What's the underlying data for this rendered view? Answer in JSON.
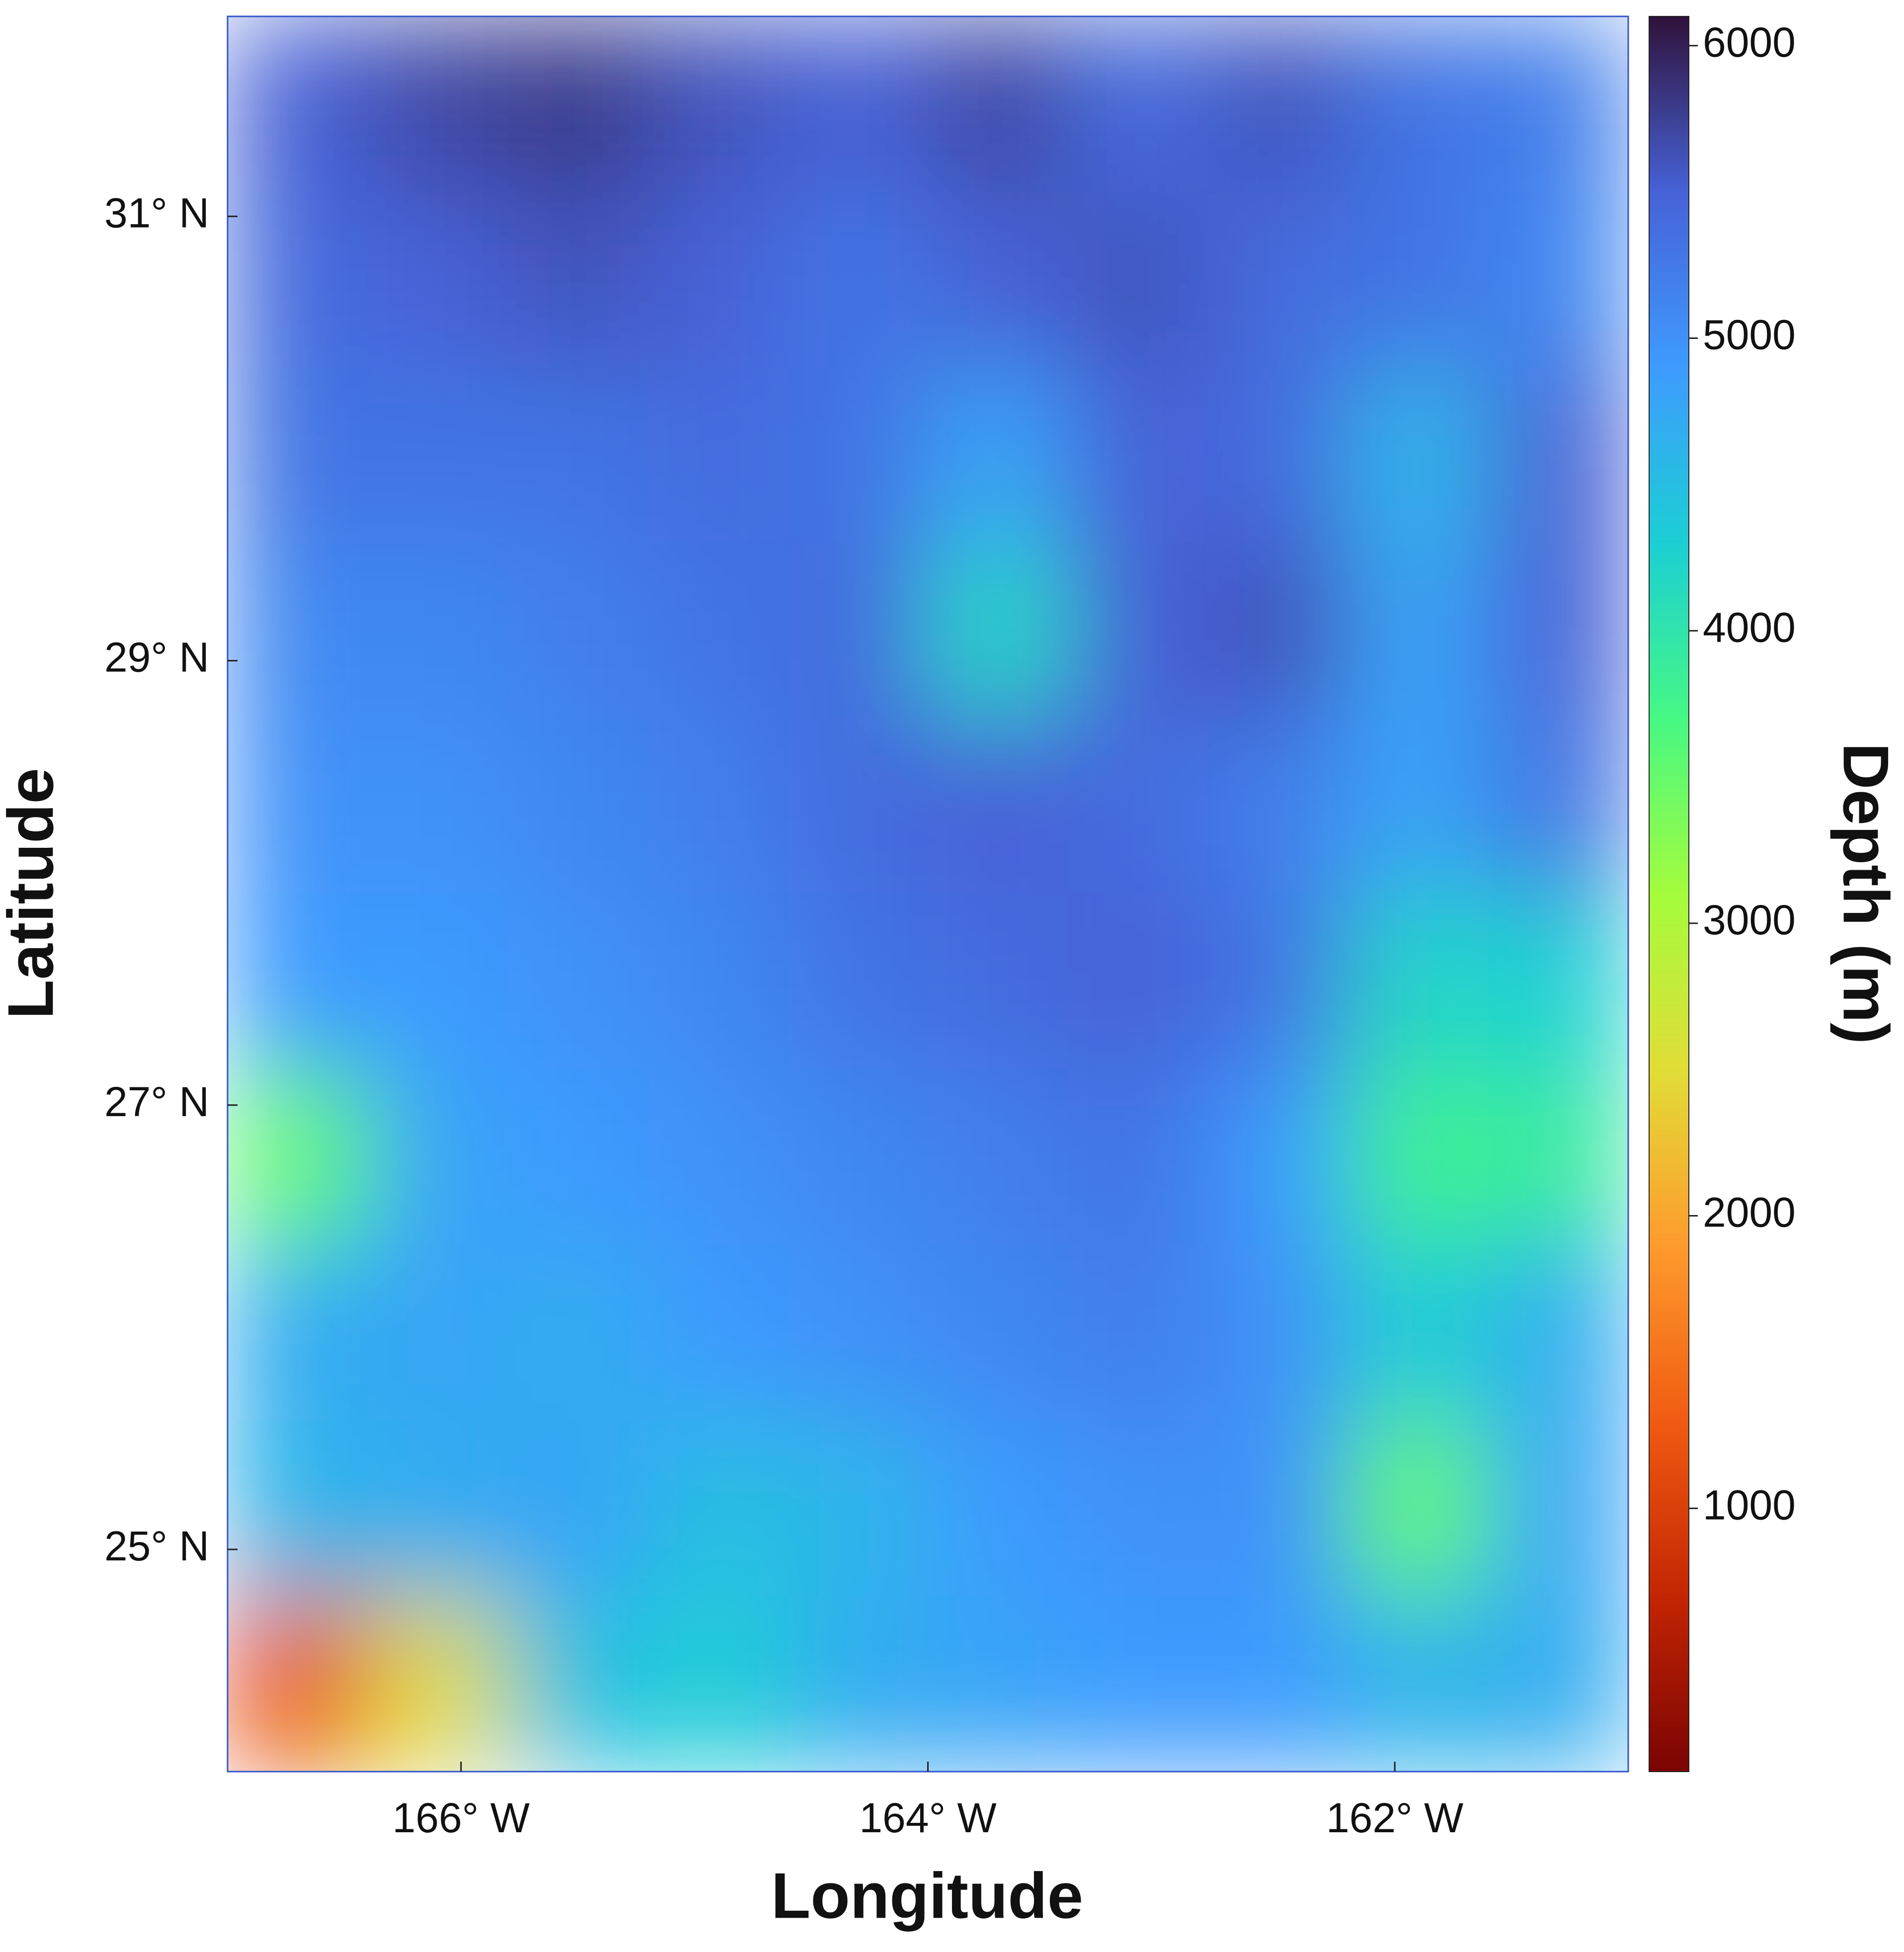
{
  "chart_data": {
    "type": "heatmap",
    "x_label": "Longitude",
    "y_label": "Latitude",
    "colorbar_label": "Depth (m)",
    "xlim": [
      -167,
      -161
    ],
    "ylim": [
      24,
      31.9
    ],
    "xticks": [
      {
        "value": -166,
        "label": "166° W"
      },
      {
        "value": -164,
        "label": "164° W"
      },
      {
        "value": -162,
        "label": "162° W"
      }
    ],
    "yticks": [
      {
        "value": 25,
        "label": "25° N"
      },
      {
        "value": 27,
        "label": "27° N"
      },
      {
        "value": 29,
        "label": "29° N"
      },
      {
        "value": 31,
        "label": "31° N"
      }
    ],
    "clim": [
      100,
      6100
    ],
    "cticks": [
      1000,
      2000,
      3000,
      4000,
      5000,
      6000
    ],
    "colorscale": [
      "#7a0403",
      "#c42503",
      "#f05b12",
      "#fe9b2d",
      "#e1dd37",
      "#a4fc3c",
      "#46f884",
      "#1bcfd4",
      "#3e9bfe",
      "#4662d7",
      "#30123b"
    ],
    "z": [
      [
        5500,
        5700,
        5800,
        5600,
        5500,
        5700,
        5400,
        5600,
        5300,
        5200
      ],
      [
        5400,
        5500,
        5600,
        5500,
        5300,
        5500,
        5600,
        5400,
        5300,
        5100
      ],
      [
        5300,
        5300,
        5300,
        5400,
        5300,
        4800,
        5500,
        5400,
        4600,
        5500
      ],
      [
        5100,
        5100,
        5200,
        5300,
        5400,
        4200,
        5500,
        5600,
        4800,
        5500
      ],
      [
        5000,
        5000,
        5100,
        5200,
        5400,
        5500,
        5400,
        5200,
        4800,
        5300
      ],
      [
        4900,
        4900,
        5000,
        5100,
        5300,
        5400,
        5500,
        5300,
        4200,
        4300
      ],
      [
        3500,
        4800,
        4900,
        5000,
        5100,
        5200,
        5300,
        4900,
        3800,
        3900
      ],
      [
        4700,
        4800,
        4700,
        4900,
        5000,
        5100,
        5200,
        5000,
        4300,
        4700
      ],
      [
        4600,
        4700,
        4800,
        4500,
        4600,
        4900,
        5000,
        5000,
        3500,
        4800
      ],
      [
        1200,
        2500,
        4500,
        4300,
        4700,
        4800,
        4900,
        4900,
        4600,
        4700
      ]
    ]
  }
}
